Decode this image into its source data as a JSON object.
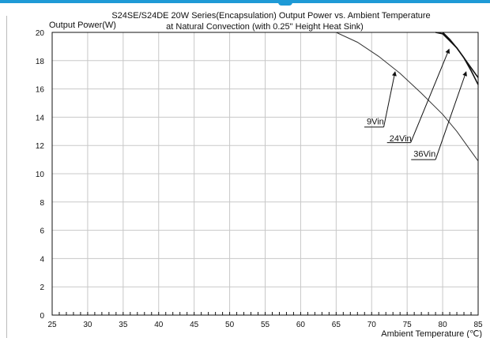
{
  "chart_data": {
    "type": "line",
    "title": "S24SE/S24DE  20W Series(Encapsulation)  Output Power vs. Ambient Temperature",
    "subtitle": "at Natural Convection (with 0.25\" Height Heat Sink)",
    "ylabel": "Output Power(W)",
    "xlabel": "Ambient Temperature (℃)",
    "xlim": [
      25,
      85
    ],
    "ylim": [
      0,
      20
    ],
    "x_ticks": [
      25,
      30,
      35,
      40,
      45,
      50,
      55,
      60,
      65,
      70,
      75,
      80,
      85
    ],
    "y_ticks": [
      0,
      2,
      4,
      6,
      8,
      10,
      12,
      14,
      16,
      18,
      20
    ],
    "grid": true,
    "series": [
      {
        "name": "9Vin",
        "x": [
          65,
          68,
          71,
          74,
          77,
          80,
          82,
          84,
          85
        ],
        "y": [
          20,
          19.3,
          18.3,
          17.1,
          15.7,
          14.2,
          13.0,
          11.6,
          10.9
        ]
      },
      {
        "name": "24Vin",
        "x": [
          79,
          80,
          81,
          82,
          83,
          84,
          85
        ],
        "y": [
          20,
          19.9,
          19.4,
          18.9,
          18.2,
          17.5,
          16.8
        ]
      },
      {
        "name": "36Vin",
        "x": [
          80,
          81,
          82,
          83,
          84,
          85
        ],
        "y": [
          20,
          19.5,
          18.9,
          18.2,
          17.3,
          16.3
        ]
      }
    ],
    "annotations": [
      {
        "label": "9Vin",
        "text_x": 69.3,
        "text_y": 13.5,
        "line_from": [
          71.7,
          13.3
        ],
        "arrow_to": [
          73.3,
          17.2
        ]
      },
      {
        "label": "24Vin",
        "text_x": 72.5,
        "text_y": 12.3,
        "line_from": [
          75.5,
          12.2
        ],
        "arrow_to": [
          80.9,
          18.8
        ]
      },
      {
        "label": "36Vin",
        "text_x": 75.9,
        "text_y": 11.2,
        "line_from": [
          79.0,
          11.0
        ],
        "arrow_to": [
          83.3,
          17.2
        ]
      }
    ]
  }
}
